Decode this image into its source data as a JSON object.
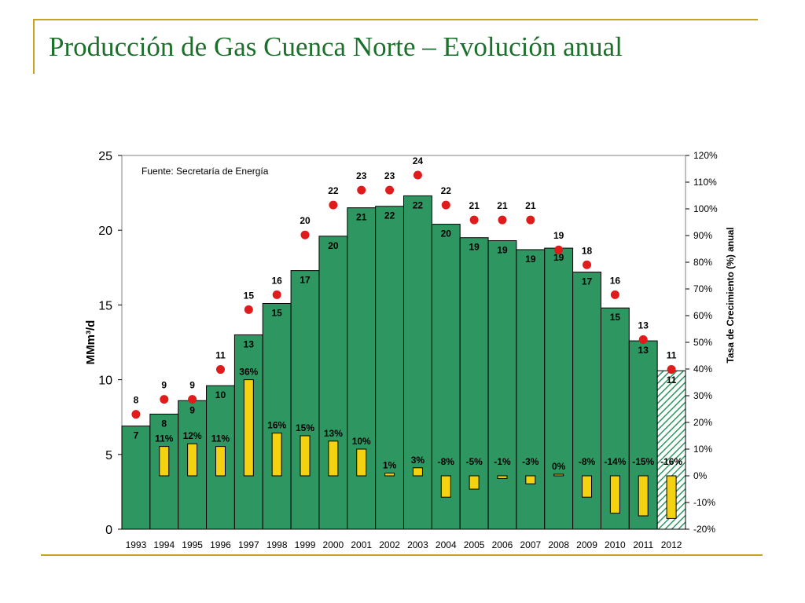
{
  "slide": {
    "title": "Producción de Gas Cuenca Norte  – Evolución anual"
  },
  "colors": {
    "title": "#1d6f2c",
    "bar": "#2e9660",
    "growth_bar": "#f5d20f",
    "dot": "#e01b1b",
    "frame": "#c8a227"
  },
  "chart_data": {
    "type": "bar",
    "annotation": "Fuente: Secretaría de Energía",
    "ylabel": "MMm³/d",
    "y2label": "Tasa de Crecimiento (%) anual",
    "ylim": [
      0,
      25
    ],
    "y2lim": [
      -20,
      120
    ],
    "yticks": [
      "0",
      "5",
      "10",
      "15",
      "20",
      "25"
    ],
    "y2ticks": [
      "-20%",
      "-10%",
      "0%",
      "10%",
      "20%",
      "30%",
      "40%",
      "50%",
      "60%",
      "70%",
      "80%",
      "90%",
      "100%",
      "110%",
      "120%"
    ],
    "categories": [
      "1993",
      "1994",
      "1995",
      "1996",
      "1997",
      "1998",
      "1999",
      "2000",
      "2001",
      "2002",
      "2003",
      "2004",
      "2005",
      "2006",
      "2007",
      "2008",
      "2009",
      "2010",
      "2011",
      "2012"
    ],
    "production": {
      "values": [
        6.9,
        7.7,
        8.6,
        9.6,
        13.0,
        15.1,
        17.3,
        19.6,
        21.5,
        21.6,
        22.3,
        20.4,
        19.5,
        19.3,
        18.7,
        18.8,
        17.2,
        14.8,
        12.6,
        10.6
      ],
      "labels": [
        "7",
        "8",
        "9",
        "10",
        "13",
        "15",
        "17",
        "20",
        "21",
        "22",
        "22",
        "20",
        "19",
        "19",
        "19",
        "19",
        "17",
        "15",
        "13",
        "11"
      ]
    },
    "growth": {
      "values": [
        null,
        11,
        12,
        11,
        36,
        16,
        15,
        13,
        10,
        1,
        3,
        -8,
        -5,
        -1,
        -3,
        0,
        -8,
        -14,
        -15,
        -16
      ],
      "labels": [
        "",
        "11%",
        "12%",
        "11%",
        "36%",
        "16%",
        "15%",
        "13%",
        "10%",
        "1%",
        "3%",
        "-8%",
        "-5%",
        "-1%",
        "-3%",
        "0%",
        "-8%",
        "-14%",
        "-15%",
        "-16%"
      ]
    },
    "dots": {
      "values": [
        8,
        9,
        9,
        11,
        15,
        16,
        20,
        22,
        23,
        23,
        24,
        22,
        21,
        21,
        21,
        19,
        18,
        16,
        13,
        11
      ],
      "labels": [
        "8",
        "9",
        "9",
        "11",
        "15",
        "16",
        "20",
        "22",
        "23",
        "23",
        "24",
        "22",
        "21",
        "21",
        "21",
        "19",
        "18",
        "16",
        "13",
        "11"
      ]
    },
    "hatched_last": true,
    "grid": false,
    "legend": "none"
  }
}
